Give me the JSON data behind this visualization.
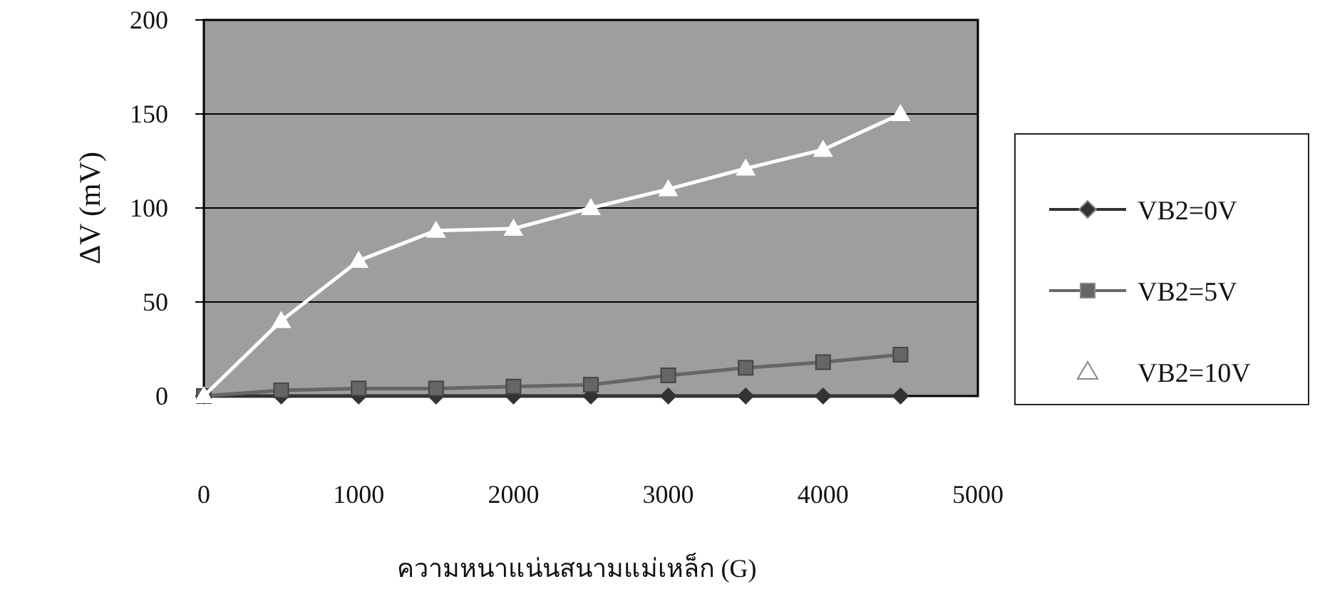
{
  "chart_data": {
    "type": "line",
    "xlabel": "ความหนาแน่นสนามแม่เหล็ก (G)",
    "ylabel": "ΔV (mV)",
    "x": [
      0,
      500,
      1000,
      1500,
      2000,
      2500,
      3000,
      3500,
      4000,
      4500
    ],
    "xlim": [
      0,
      5000
    ],
    "xticks": [
      0,
      1000,
      2000,
      3000,
      4000,
      5000
    ],
    "ylim": [
      0,
      200
    ],
    "yticks": [
      0,
      50,
      100,
      150,
      200
    ],
    "grid": "y",
    "legend": "right",
    "series": [
      {
        "name": "VB2=0V",
        "color": "#333333",
        "marker": "diamond",
        "values": [
          0,
          0,
          0,
          0,
          0,
          0,
          0,
          0,
          0,
          0
        ]
      },
      {
        "name": "VB2=5V",
        "color": "#666666",
        "marker": "square",
        "values": [
          0,
          3,
          4,
          4,
          5,
          6,
          11,
          15,
          18,
          22
        ]
      },
      {
        "name": "VB2=10V",
        "color": "#ffffff",
        "marker": "triangle",
        "values": [
          0,
          40,
          72,
          88,
          89,
          100,
          110,
          121,
          131,
          150
        ]
      }
    ]
  }
}
